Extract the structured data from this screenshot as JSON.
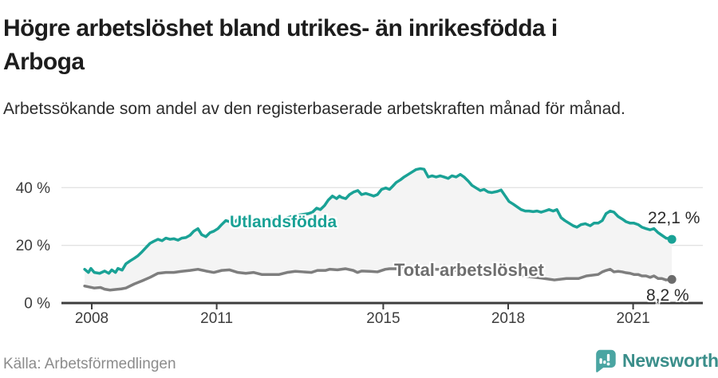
{
  "header": {
    "title": "Högre arbetslöshet bland utrikes- än inrikesfödda i Arboga",
    "subtitle": "Arbetssökande som andel av den registerbaserade arbetskraften månad för månad."
  },
  "footer": {
    "source": "Källa: Arbetsförmedlingen",
    "brand": "Newsworthy"
  },
  "chart_data": {
    "type": "line",
    "title": "Högre arbetslöshet bland utrikes- än inrikesfödda i Arboga",
    "xlabel": "",
    "ylabel": "",
    "x_ticks": [
      2008,
      2011,
      2015,
      2018,
      2021
    ],
    "y_ticks": [
      0,
      20,
      40
    ],
    "y_tick_labels": [
      "0 %",
      "20 %",
      "40 %"
    ],
    "xlim": [
      2007.8,
      2022.1
    ],
    "ylim": [
      0,
      48
    ],
    "grid": "horizontal",
    "grid_color": "#e3e3e3",
    "axis_color": "#3d3d3d",
    "axis_text_color": "#3d3d3d",
    "band_fill": "#f4f4f4",
    "legend_position": "inline-labels",
    "series": [
      {
        "name": "Utlandsfödda",
        "color": "#1aa296",
        "dot_color": "#1aa296",
        "end_label": "22,1 %",
        "end_value": 22.1,
        "points": [
          [
            2007.83,
            11.7
          ],
          [
            2007.92,
            10.6
          ],
          [
            2007.98,
            12.0
          ],
          [
            2008.06,
            10.6
          ],
          [
            2008.19,
            10.3
          ],
          [
            2008.31,
            11.1
          ],
          [
            2008.41,
            10.3
          ],
          [
            2008.48,
            11.5
          ],
          [
            2008.57,
            10.6
          ],
          [
            2008.63,
            12.0
          ],
          [
            2008.73,
            11.4
          ],
          [
            2008.82,
            13.6
          ],
          [
            2008.92,
            14.6
          ],
          [
            2009.02,
            15.5
          ],
          [
            2009.11,
            16.4
          ],
          [
            2009.21,
            17.8
          ],
          [
            2009.3,
            19.2
          ],
          [
            2009.4,
            20.7
          ],
          [
            2009.49,
            21.4
          ],
          [
            2009.59,
            22.1
          ],
          [
            2009.69,
            21.6
          ],
          [
            2009.78,
            22.5
          ],
          [
            2009.88,
            22.1
          ],
          [
            2009.97,
            22.3
          ],
          [
            2010.07,
            21.8
          ],
          [
            2010.16,
            22.5
          ],
          [
            2010.26,
            22.7
          ],
          [
            2010.36,
            23.5
          ],
          [
            2010.45,
            24.9
          ],
          [
            2010.55,
            25.8
          ],
          [
            2010.64,
            23.7
          ],
          [
            2010.74,
            23.0
          ],
          [
            2010.84,
            24.4
          ],
          [
            2010.93,
            24.9
          ],
          [
            2011.03,
            25.8
          ],
          [
            2011.12,
            27.2
          ],
          [
            2011.22,
            28.6
          ],
          [
            2011.31,
            28.2
          ],
          [
            2011.41,
            27.7
          ],
          [
            2011.51,
            29.1
          ],
          [
            2011.6,
            28.5
          ],
          [
            2011.8,
            28.0
          ],
          [
            2012.0,
            28.6
          ],
          [
            2012.2,
            29.0
          ],
          [
            2012.4,
            29.5
          ],
          [
            2012.6,
            29.2
          ],
          [
            2012.8,
            30.0
          ],
          [
            2013.0,
            30.6
          ],
          [
            2013.2,
            31.0
          ],
          [
            2013.3,
            31.5
          ],
          [
            2013.4,
            32.9
          ],
          [
            2013.49,
            32.4
          ],
          [
            2013.59,
            33.8
          ],
          [
            2013.68,
            35.7
          ],
          [
            2013.78,
            37.1
          ],
          [
            2013.88,
            36.2
          ],
          [
            2013.95,
            37.1
          ],
          [
            2014.0,
            36.6
          ],
          [
            2014.1,
            36.2
          ],
          [
            2014.19,
            37.6
          ],
          [
            2014.29,
            38.5
          ],
          [
            2014.39,
            39.0
          ],
          [
            2014.48,
            37.6
          ],
          [
            2014.58,
            38.0
          ],
          [
            2014.67,
            37.6
          ],
          [
            2014.77,
            37.1
          ],
          [
            2014.86,
            37.6
          ],
          [
            2014.96,
            39.4
          ],
          [
            2015.06,
            39.9
          ],
          [
            2015.15,
            39.4
          ],
          [
            2015.22,
            40.4
          ],
          [
            2015.31,
            41.8
          ],
          [
            2015.41,
            42.7
          ],
          [
            2015.5,
            43.7
          ],
          [
            2015.6,
            44.6
          ],
          [
            2015.7,
            45.5
          ],
          [
            2015.79,
            46.3
          ],
          [
            2015.89,
            46.6
          ],
          [
            2015.98,
            46.4
          ],
          [
            2016.08,
            43.7
          ],
          [
            2016.17,
            44.1
          ],
          [
            2016.27,
            43.7
          ],
          [
            2016.37,
            44.1
          ],
          [
            2016.46,
            43.7
          ],
          [
            2016.56,
            43.2
          ],
          [
            2016.65,
            44.1
          ],
          [
            2016.75,
            43.7
          ],
          [
            2016.85,
            44.6
          ],
          [
            2016.94,
            43.7
          ],
          [
            2017.04,
            42.3
          ],
          [
            2017.13,
            40.8
          ],
          [
            2017.23,
            39.9
          ],
          [
            2017.33,
            39.0
          ],
          [
            2017.42,
            39.4
          ],
          [
            2017.52,
            38.5
          ],
          [
            2017.61,
            38.3
          ],
          [
            2017.74,
            38.7
          ],
          [
            2017.83,
            39.2
          ],
          [
            2017.93,
            37.1
          ],
          [
            2018.02,
            35.2
          ],
          [
            2018.12,
            34.3
          ],
          [
            2018.22,
            33.3
          ],
          [
            2018.31,
            32.4
          ],
          [
            2018.41,
            31.9
          ],
          [
            2018.5,
            31.9
          ],
          [
            2018.6,
            31.7
          ],
          [
            2018.69,
            31.9
          ],
          [
            2018.79,
            31.5
          ],
          [
            2018.88,
            31.9
          ],
          [
            2018.98,
            32.4
          ],
          [
            2019.08,
            31.9
          ],
          [
            2019.17,
            32.4
          ],
          [
            2019.27,
            29.6
          ],
          [
            2019.36,
            28.6
          ],
          [
            2019.46,
            27.7
          ],
          [
            2019.56,
            26.8
          ],
          [
            2019.65,
            26.3
          ],
          [
            2019.75,
            27.2
          ],
          [
            2019.85,
            27.5
          ],
          [
            2019.97,
            26.8
          ],
          [
            2020.06,
            27.7
          ],
          [
            2020.16,
            27.7
          ],
          [
            2020.26,
            28.6
          ],
          [
            2020.35,
            31.0
          ],
          [
            2020.45,
            31.9
          ],
          [
            2020.54,
            31.5
          ],
          [
            2020.64,
            30.0
          ],
          [
            2020.74,
            29.1
          ],
          [
            2020.83,
            28.2
          ],
          [
            2020.93,
            27.7
          ],
          [
            2021.02,
            27.7
          ],
          [
            2021.12,
            27.2
          ],
          [
            2021.21,
            26.3
          ],
          [
            2021.31,
            25.8
          ],
          [
            2021.41,
            25.4
          ],
          [
            2021.5,
            25.8
          ],
          [
            2021.6,
            24.4
          ],
          [
            2021.69,
            23.5
          ],
          [
            2021.79,
            22.5
          ],
          [
            2021.88,
            22.3
          ],
          [
            2021.93,
            22.1
          ]
        ]
      },
      {
        "name": "Total arbetslöshet",
        "color": "#7e7e7e",
        "dot_color": "#6b6b6b",
        "end_label": "8,2 %",
        "end_value": 8.2,
        "points": [
          [
            2007.83,
            5.9
          ],
          [
            2008.06,
            5.2
          ],
          [
            2008.21,
            5.4
          ],
          [
            2008.31,
            4.8
          ],
          [
            2008.44,
            4.5
          ],
          [
            2008.57,
            4.7
          ],
          [
            2008.71,
            4.9
          ],
          [
            2008.82,
            5.2
          ],
          [
            2009.02,
            6.6
          ],
          [
            2009.21,
            7.7
          ],
          [
            2009.4,
            8.9
          ],
          [
            2009.59,
            10.3
          ],
          [
            2009.78,
            10.6
          ],
          [
            2009.97,
            10.6
          ],
          [
            2010.16,
            11.0
          ],
          [
            2010.36,
            11.3
          ],
          [
            2010.55,
            11.7
          ],
          [
            2010.74,
            11.1
          ],
          [
            2010.93,
            10.6
          ],
          [
            2011.12,
            11.3
          ],
          [
            2011.31,
            11.5
          ],
          [
            2011.51,
            10.6
          ],
          [
            2011.7,
            10.3
          ],
          [
            2011.89,
            10.6
          ],
          [
            2012.08,
            9.9
          ],
          [
            2012.27,
            9.9
          ],
          [
            2012.5,
            9.9
          ],
          [
            2012.69,
            10.6
          ],
          [
            2012.89,
            11.0
          ],
          [
            2013.08,
            10.8
          ],
          [
            2013.27,
            10.6
          ],
          [
            2013.42,
            11.3
          ],
          [
            2013.61,
            11.3
          ],
          [
            2013.71,
            11.7
          ],
          [
            2013.9,
            11.5
          ],
          [
            2014.09,
            11.9
          ],
          [
            2014.28,
            11.3
          ],
          [
            2014.38,
            10.6
          ],
          [
            2014.48,
            11.1
          ],
          [
            2014.67,
            11.0
          ],
          [
            2014.86,
            10.8
          ],
          [
            2015.05,
            11.7
          ],
          [
            2015.15,
            11.9
          ],
          [
            2015.34,
            11.9
          ],
          [
            2015.5,
            12.2
          ],
          [
            2015.76,
            12.0
          ],
          [
            2016.14,
            11.8
          ],
          [
            2016.52,
            11.5
          ],
          [
            2016.91,
            11.2
          ],
          [
            2017.29,
            10.6
          ],
          [
            2017.67,
            10.2
          ],
          [
            2018.06,
            9.8
          ],
          [
            2018.44,
            9.3
          ],
          [
            2018.82,
            8.6
          ],
          [
            2019.11,
            8.0
          ],
          [
            2019.4,
            8.5
          ],
          [
            2019.69,
            8.5
          ],
          [
            2019.88,
            9.4
          ],
          [
            2020.16,
            9.9
          ],
          [
            2020.26,
            10.8
          ],
          [
            2020.35,
            11.3
          ],
          [
            2020.45,
            11.7
          ],
          [
            2020.54,
            10.8
          ],
          [
            2020.64,
            11.0
          ],
          [
            2020.74,
            10.8
          ],
          [
            2020.83,
            10.5
          ],
          [
            2020.93,
            10.3
          ],
          [
            2021.02,
            9.9
          ],
          [
            2021.12,
            9.9
          ],
          [
            2021.21,
            9.4
          ],
          [
            2021.31,
            9.4
          ],
          [
            2021.41,
            8.9
          ],
          [
            2021.5,
            9.4
          ],
          [
            2021.6,
            8.5
          ],
          [
            2021.69,
            8.5
          ],
          [
            2021.79,
            8.0
          ],
          [
            2021.93,
            8.2
          ]
        ]
      }
    ]
  }
}
